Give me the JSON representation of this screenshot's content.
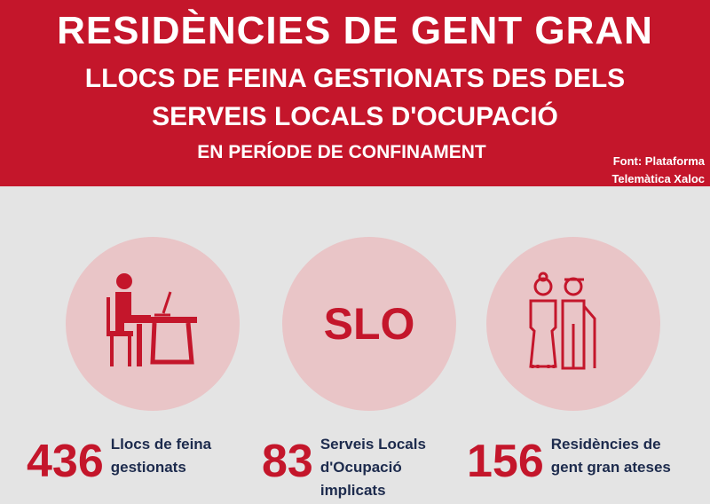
{
  "header": {
    "title": "RESIDÈNCIES DE GENT GRAN",
    "subtitle_line1": "LLOCS DE FEINA GESTIONATS DES DELS",
    "subtitle_line2": "SERVEIS LOCALS D'OCUPACIÓ",
    "subtitle_line3": "EN PERÍODE DE CONFINAMENT",
    "source_line1": "Font:  Plataforma",
    "source_line2": "Telemàtica Xaloc"
  },
  "colors": {
    "accent": "#c4162b",
    "circle": "#e9c5c7",
    "background": "#e4e4e4",
    "label": "#1d2b4d"
  },
  "circles": [
    {
      "icon": "person-at-desk-icon"
    },
    {
      "text": "SLO"
    },
    {
      "icon": "elderly-couple-icon"
    }
  ],
  "stats": [
    {
      "value": "436",
      "label_line1": "Llocs de feina",
      "label_line2": "gestionats"
    },
    {
      "value": "83",
      "label_line1": "Serveis Locals",
      "label_line2": "d'Ocupació",
      "label_line3": "implicats"
    },
    {
      "value": "156",
      "label_line1": "Residències de",
      "label_line2": "gent gran ateses"
    }
  ]
}
